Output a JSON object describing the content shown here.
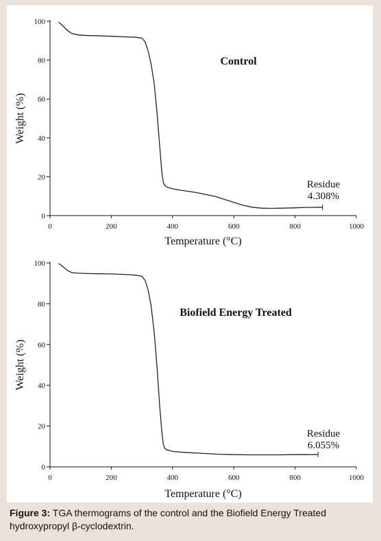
{
  "caption": {
    "label": "Figure 3:",
    "text": " TGA thermograms of the control and the Biofield Energy Treated hydroxypropyl β-cyclodextrin."
  },
  "line_color": "#222222",
  "chart_data": [
    {
      "type": "line",
      "title": "Control",
      "xlabel": "Temperature (°C)",
      "ylabel": "Weight (%)",
      "xlim": [
        0,
        1000
      ],
      "ylim": [
        0,
        100
      ],
      "xticks": [
        0,
        200,
        400,
        600,
        800,
        1000
      ],
      "yticks": [
        0,
        20,
        40,
        60,
        80,
        100
      ],
      "annotation": {
        "label": "Residue",
        "value": "4.308%"
      },
      "series": [
        {
          "x": [
            28,
            40,
            55,
            70,
            90,
            120,
            160,
            200,
            240,
            280,
            300,
            310,
            320,
            330,
            340,
            350,
            358,
            365,
            370,
            375,
            380,
            390,
            400,
            420,
            450,
            480,
            510,
            540,
            570,
            600,
            630,
            660,
            690,
            720,
            760,
            800,
            840,
            890
          ],
          "y": [
            99.5,
            98,
            95.5,
            93.8,
            93,
            92.7,
            92.5,
            92.3,
            92,
            91.8,
            91.3,
            89.5,
            85,
            78,
            68,
            52,
            36,
            22,
            17,
            15.5,
            14.8,
            14.2,
            13.8,
            13.2,
            12.5,
            11.8,
            10.8,
            9.8,
            8.3,
            6.8,
            5.3,
            4.3,
            3.8,
            3.7,
            3.8,
            4.0,
            4.2,
            4.3
          ]
        }
      ]
    },
    {
      "type": "line",
      "title": "Biofield Energy Treated",
      "xlabel": "Temperature (°C)",
      "ylabel": "Weight (%)",
      "xlim": [
        0,
        1000
      ],
      "ylim": [
        0,
        100
      ],
      "xticks": [
        0,
        200,
        400,
        600,
        800,
        1000
      ],
      "yticks": [
        0,
        20,
        40,
        60,
        80,
        100
      ],
      "annotation": {
        "label": "Residue",
        "value": "6.055%"
      },
      "series": [
        {
          "x": [
            28,
            40,
            55,
            70,
            90,
            120,
            160,
            200,
            240,
            280,
            300,
            310,
            320,
            330,
            340,
            350,
            358,
            365,
            370,
            375,
            380,
            390,
            400,
            420,
            450,
            500,
            550,
            600,
            650,
            700,
            750,
            800,
            850,
            875
          ],
          "y": [
            99.8,
            98.5,
            96.5,
            95.3,
            95,
            94.8,
            94.7,
            94.6,
            94.4,
            94,
            93.5,
            91.5,
            87,
            79,
            66,
            48,
            30,
            17,
            11,
            9,
            8.4,
            8.0,
            7.6,
            7.3,
            7.0,
            6.6,
            6.2,
            6.0,
            5.9,
            5.9,
            5.9,
            6.0,
            6.0,
            6.055
          ]
        }
      ]
    }
  ]
}
